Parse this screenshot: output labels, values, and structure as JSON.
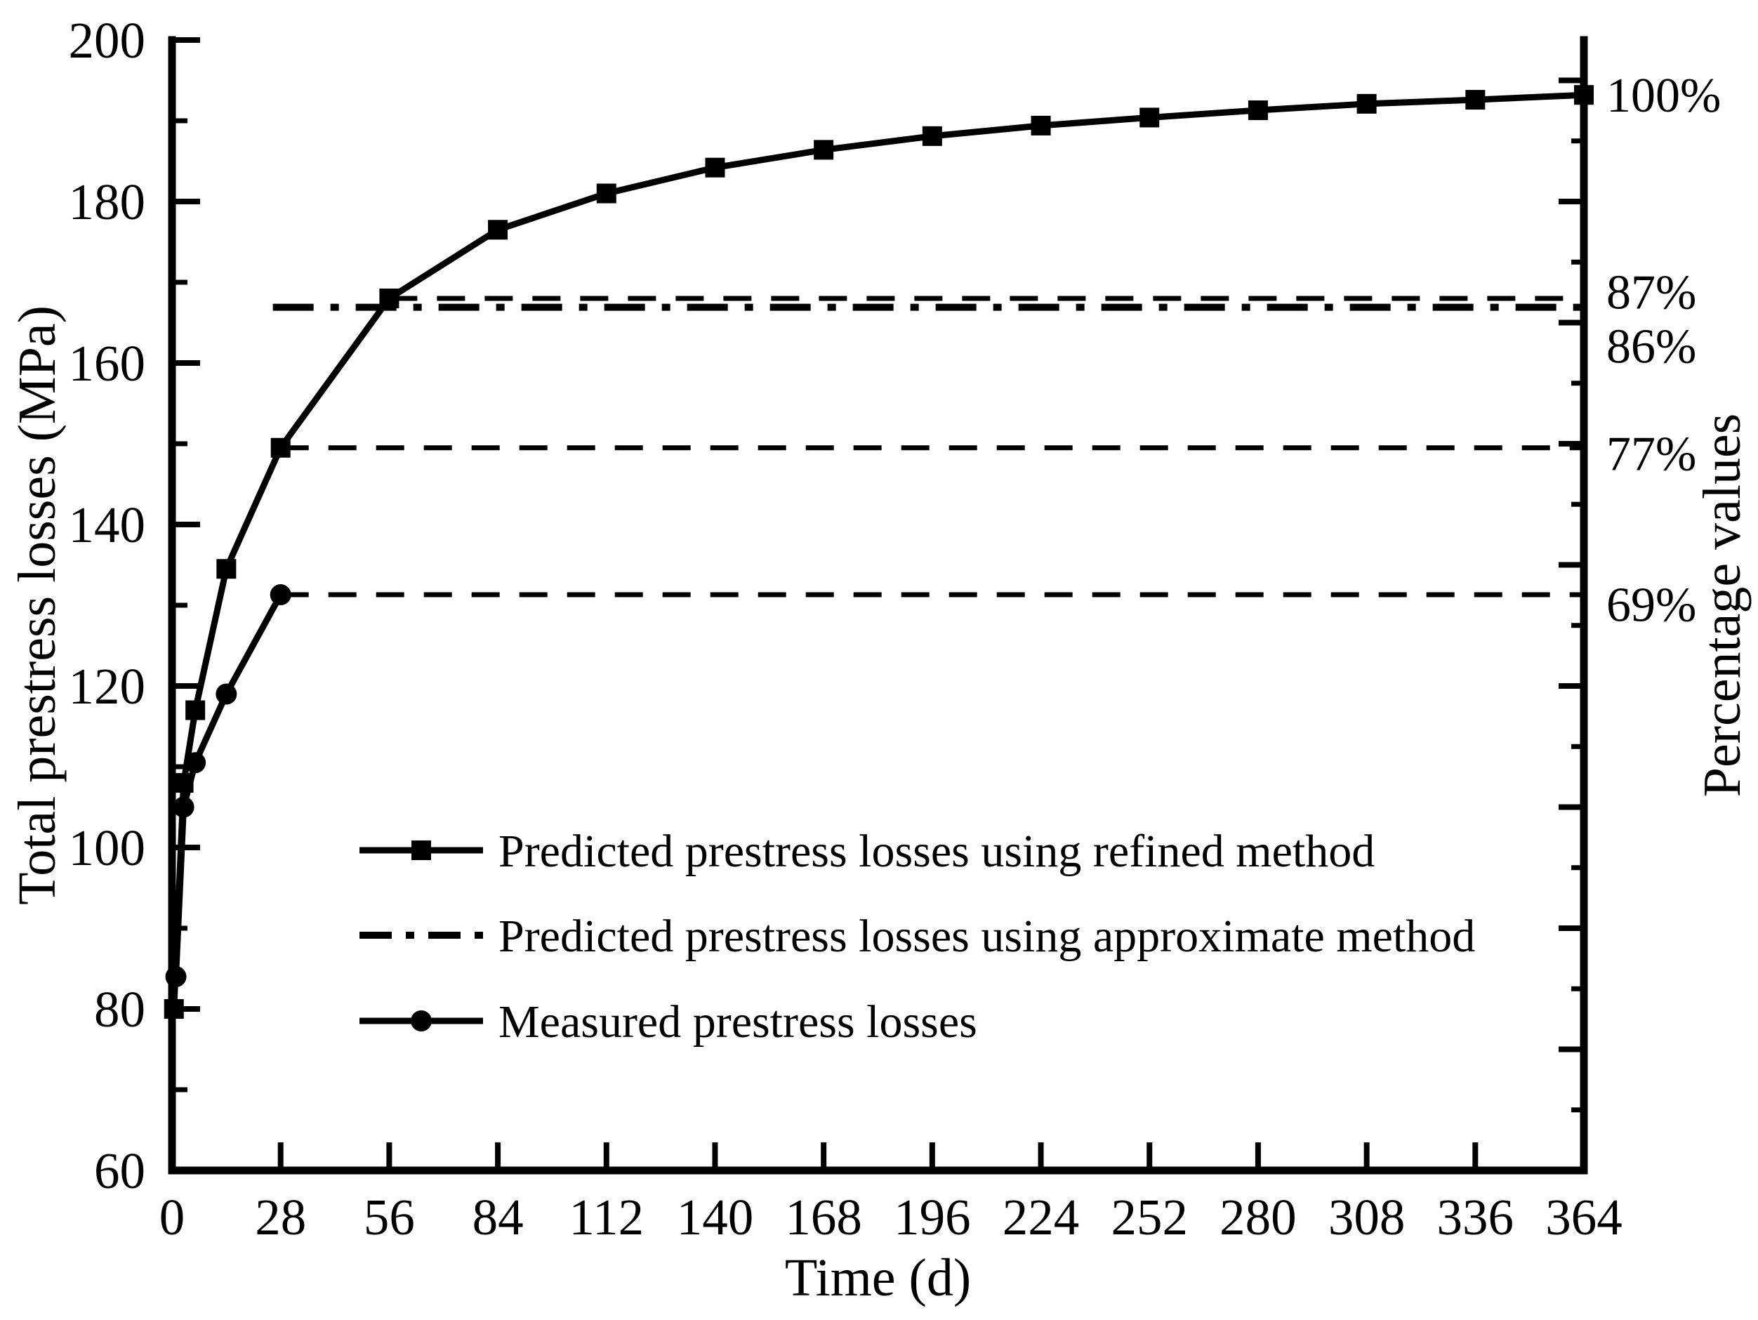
{
  "chart_data": {
    "type": "line",
    "xlabel": "Time (d)",
    "ylabel_left": "Total prestress losses (MPa)",
    "ylabel_right": "Percentage values",
    "xlim": [
      0,
      364
    ],
    "ylim": [
      60,
      200
    ],
    "x_ticks": [
      0,
      28,
      56,
      84,
      112,
      140,
      168,
      196,
      224,
      252,
      280,
      308,
      336,
      364
    ],
    "y_ticks_major": [
      60,
      80,
      100,
      120,
      140,
      160,
      180,
      200
    ],
    "y_ticks_minor": [
      70,
      90,
      110,
      130,
      150,
      170,
      190
    ],
    "right_ticks_major": [
      60,
      75,
      90,
      105,
      120,
      135,
      150,
      165,
      180,
      195
    ],
    "right_ticks_minor": [
      67.5,
      82.5,
      97.5,
      112.5,
      127.5,
      142.5,
      157.5,
      172.5,
      187.5
    ],
    "grid": false,
    "colors": {
      "line": "#000000",
      "background": "#ffffff"
    },
    "series": [
      {
        "name": "Predicted prestress losses using refined method",
        "marker": "square",
        "line_style": "solid",
        "x": [
          0.5,
          3,
          6,
          14,
          28,
          56,
          84,
          112,
          140,
          168,
          196,
          224,
          252,
          280,
          308,
          336,
          364
        ],
        "y": [
          80,
          108,
          117,
          134.5,
          149.5,
          168,
          176.5,
          181,
          184.2,
          186.4,
          188.1,
          189.4,
          190.4,
          191.3,
          192.1,
          192.6,
          193.2
        ]
      },
      {
        "name": "Predicted prestress losses using approximate method",
        "marker": "none",
        "line_style": "dashdot",
        "x": [
          26,
          364
        ],
        "y": [
          166.9,
          166.9
        ]
      },
      {
        "name": "Measured prestress losses",
        "marker": "circle",
        "line_style": "solid",
        "x": [
          1,
          3,
          6,
          14,
          28
        ],
        "y": [
          84,
          105,
          110.5,
          119,
          131.3
        ]
      }
    ],
    "annotations": [
      {
        "text": "100%",
        "line_v": 193.2,
        "label_v": 193.3,
        "dashed": false,
        "from_t": null
      },
      {
        "text": "87%",
        "line_v": 168.0,
        "label_v": 168.9,
        "dashed": true,
        "from_t": 56
      },
      {
        "text": "86%",
        "line_v": 166.9,
        "label_v": 162.2,
        "dashed": false,
        "from_t": null
      },
      {
        "text": "77%",
        "line_v": 149.5,
        "label_v": 148.9,
        "dashed": true,
        "from_t": 28
      },
      {
        "text": "69%",
        "line_v": 131.3,
        "label_v": 130.2,
        "dashed": true,
        "from_t": 28
      }
    ],
    "legend": {
      "position": "center-left-inside",
      "entries": [
        {
          "label": "Predicted prestress losses using refined method",
          "marker": "square",
          "line_style": "solid"
        },
        {
          "label": "Predicted prestress losses using approximate method",
          "marker": "none",
          "line_style": "dashdot"
        },
        {
          "label": "Measured prestress losses",
          "marker": "circle",
          "line_style": "solid"
        }
      ]
    }
  }
}
